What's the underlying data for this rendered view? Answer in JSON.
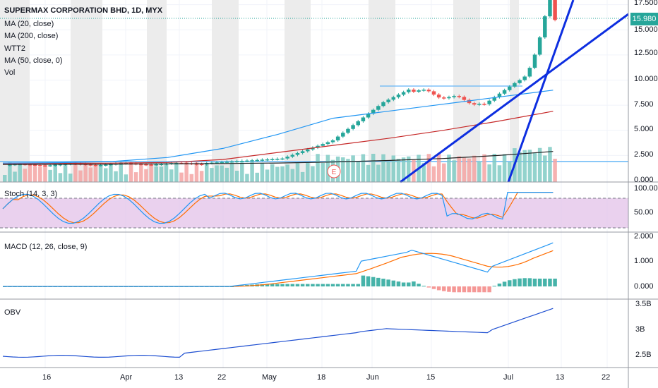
{
  "header": {
    "symbol": "SUPERMAX CORPORATION BHD, 1D, MYX",
    "indicators": [
      "MA (20, close)",
      "MA (200, close)",
      "WTT2",
      "MA (50, close, 0)",
      "Vol"
    ]
  },
  "last_price": "15.980",
  "earnings_marker": "E",
  "colors": {
    "up": "#26a69a",
    "down": "#ef5350",
    "ma20": "#2196f3",
    "ma50": "#c62828",
    "ma200": "#212121",
    "trend": "#0d2ee0",
    "stoch_k": "#2196f3",
    "stoch_d": "#ff6d00",
    "stoch_band": "#e1bee7",
    "obv": "#1e4fd1"
  },
  "chart_data": [
    {
      "type": "candlestick",
      "pane": "price",
      "x_ticks": [
        "16",
        "Apr",
        "13",
        "22",
        "May",
        "18",
        "Jun",
        "15",
        "Jul",
        "13",
        "22"
      ],
      "y_ticks": [
        "17.500",
        "15.000",
        "12.500",
        "10.000",
        "7.500",
        "5.000",
        "2.500",
        "0.000"
      ],
      "ylim": [
        0,
        17.5
      ],
      "last": 15.98,
      "series": [
        {
          "name": "MA (20, close)",
          "values": [
            1.75,
            1.78,
            1.9,
            2.3,
            3.2,
            4.6,
            6.2,
            6.9,
            7.6,
            8.3,
            9.0
          ]
        },
        {
          "name": "MA (50, close, 0)",
          "values": [
            1.7,
            1.72,
            1.74,
            1.8,
            2.1,
            2.8,
            3.5,
            4.2,
            5.0,
            5.9,
            6.9
          ]
        },
        {
          "name": "MA (200, close)",
          "values": [
            1.6,
            1.62,
            1.64,
            1.67,
            1.7,
            1.75,
            1.85,
            2.0,
            2.2,
            2.5,
            2.9
          ]
        }
      ]
    },
    {
      "type": "line",
      "pane": "stoch",
      "title": "Stoch (14, 3, 3)",
      "y_ticks": [
        "100.00",
        "50.00"
      ],
      "ylim": [
        0,
        100
      ],
      "bands": [
        80,
        20
      ]
    },
    {
      "type": "line",
      "pane": "macd",
      "title": "MACD (12, 26, close, 9)",
      "y_ticks": [
        "2.000",
        "1.000",
        "0.000"
      ],
      "ylim": [
        -0.35,
        2.0
      ]
    },
    {
      "type": "line",
      "pane": "obv",
      "title": "OBV",
      "y_ticks": [
        "3.5B",
        "3B",
        "2.5B"
      ],
      "ylim": [
        2.33,
        3.5
      ]
    }
  ]
}
